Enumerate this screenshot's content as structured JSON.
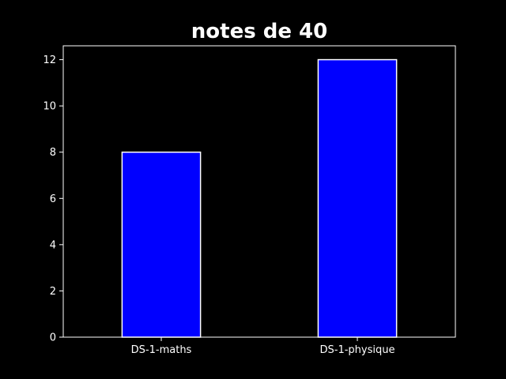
{
  "chart_data": {
    "type": "bar",
    "title": "notes de 40",
    "xlabel": "",
    "ylabel": "",
    "categories": [
      "DS-1-maths",
      "DS-1-physique"
    ],
    "values": [
      8,
      12
    ],
    "ylim": [
      0,
      12.6
    ],
    "yticks": [
      0,
      2,
      4,
      6,
      8,
      10,
      12
    ],
    "grid": false,
    "legend": "none",
    "colors": {
      "background": "#000000",
      "bar_fill": "#0000ff",
      "bar_edge": "#ffffff",
      "axis": "#ffffff",
      "text": "#ffffff"
    }
  }
}
